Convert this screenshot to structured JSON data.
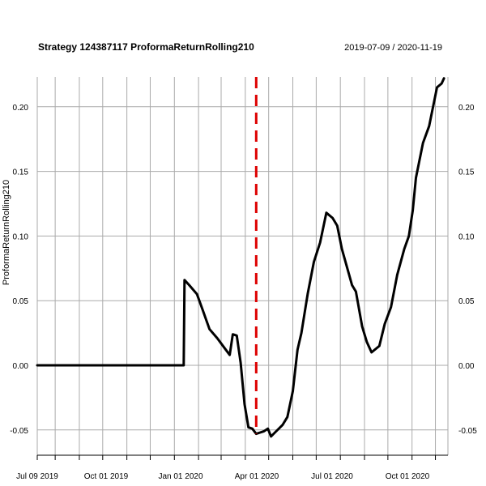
{
  "chart_data": {
    "type": "line",
    "title": "Strategy 124387117 ProformaReturnRolling210",
    "date_range": "2019-07-09 / 2020-11-19",
    "ylabel": "ProformaReturnRolling210",
    "ylim": [
      -0.068,
      0.223
    ],
    "xlim": [
      "2019-07-09",
      "2020-11-19"
    ],
    "x_tick_labels": [
      "Jul 09 2019",
      "Oct 01 2019",
      "Jan 01 2020",
      "Apr 01 2020",
      "Jul 01 2020",
      "Oct 01 2020"
    ],
    "y_ticks": [
      -0.05,
      0.0,
      0.05,
      0.1,
      0.15,
      0.2
    ],
    "y_tick_labels": [
      "-0.05",
      "0.00",
      "0.05",
      "0.10",
      "0.15",
      "0.20"
    ],
    "grid": true,
    "colors": {
      "line": "#000000",
      "marker": "#dd0000",
      "grid": "#aaaaaa"
    },
    "marker_date": "2020-04-15",
    "series": [
      {
        "points": [
          [
            "2019-07-09",
            0.0
          ],
          [
            "2019-10-01",
            0.0
          ],
          [
            "2020-01-01",
            0.0
          ],
          [
            "2020-01-13",
            0.0
          ],
          [
            "2020-01-14",
            0.066
          ],
          [
            "2020-01-20",
            0.062
          ],
          [
            "2020-01-30",
            0.055
          ],
          [
            "2020-02-05",
            0.045
          ],
          [
            "2020-02-15",
            0.028
          ],
          [
            "2020-02-25",
            0.021
          ],
          [
            "2020-03-07",
            0.012
          ],
          [
            "2020-03-12",
            0.008
          ],
          [
            "2020-03-16",
            0.024
          ],
          [
            "2020-03-21",
            0.023
          ],
          [
            "2020-03-26",
            0.002
          ],
          [
            "2020-03-31",
            -0.03
          ],
          [
            "2020-04-05",
            -0.048
          ],
          [
            "2020-04-10",
            -0.049
          ],
          [
            "2020-04-15",
            -0.053
          ],
          [
            "2020-04-20",
            -0.052
          ],
          [
            "2020-04-25",
            -0.051
          ],
          [
            "2020-04-30",
            -0.049
          ],
          [
            "2020-05-04",
            -0.055
          ],
          [
            "2020-05-09",
            -0.052
          ],
          [
            "2020-05-19",
            -0.046
          ],
          [
            "2020-05-25",
            -0.04
          ],
          [
            "2020-06-01",
            -0.02
          ],
          [
            "2020-06-07",
            0.012
          ],
          [
            "2020-06-12",
            0.025
          ],
          [
            "2020-06-20",
            0.055
          ],
          [
            "2020-06-28",
            0.08
          ],
          [
            "2020-07-06",
            0.095
          ],
          [
            "2020-07-14",
            0.118
          ],
          [
            "2020-07-22",
            0.114
          ],
          [
            "2020-07-28",
            0.108
          ],
          [
            "2020-08-03",
            0.09
          ],
          [
            "2020-08-10",
            0.075
          ],
          [
            "2020-08-16",
            0.062
          ],
          [
            "2020-08-21",
            0.057
          ],
          [
            "2020-08-29",
            0.03
          ],
          [
            "2020-09-04",
            0.018
          ],
          [
            "2020-09-10",
            0.01
          ],
          [
            "2020-09-20",
            0.015
          ],
          [
            "2020-09-27",
            0.032
          ],
          [
            "2020-10-05",
            0.045
          ],
          [
            "2020-10-13",
            0.07
          ],
          [
            "2020-10-22",
            0.09
          ],
          [
            "2020-10-28",
            0.1
          ],
          [
            "2020-11-02",
            0.12
          ],
          [
            "2020-11-06",
            0.145
          ],
          [
            "2020-11-15",
            0.172
          ],
          [
            "2020-11-23",
            0.185
          ],
          [
            "2020-12-03",
            0.215
          ],
          [
            "2020-12-09",
            0.218
          ],
          [
            "2020-12-12",
            0.222
          ]
        ]
      }
    ]
  }
}
